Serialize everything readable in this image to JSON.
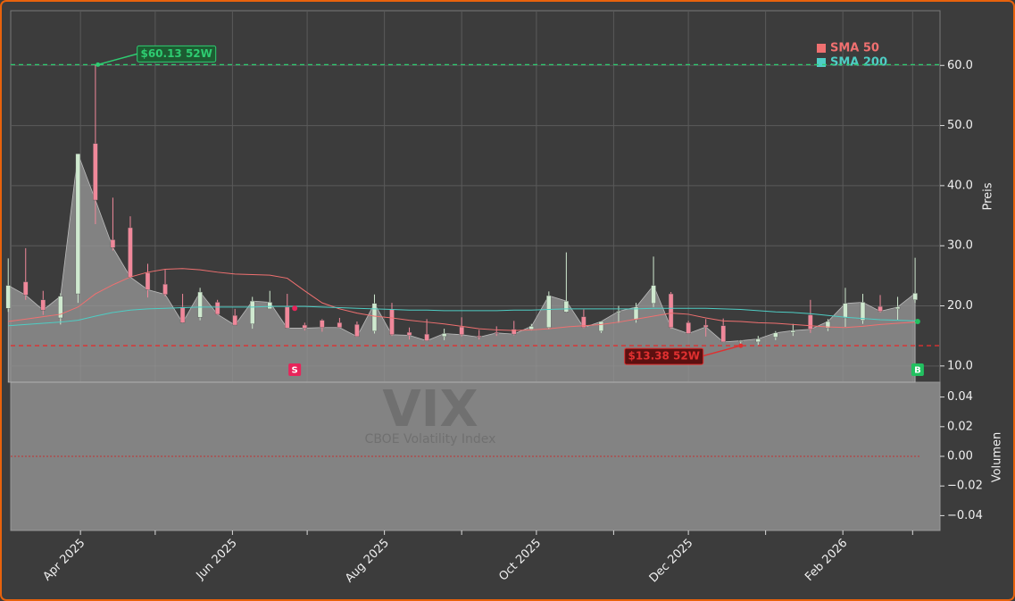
{
  "chart_data": {
    "type": "candlestick",
    "watermark": {
      "symbol": "VIX",
      "name": "CBOE Volatility Index"
    },
    "ylabel": "Preis",
    "y2label": "Volumen",
    "xlim": [
      "2025-03-04",
      "2026-03-12"
    ],
    "ylim": [
      7.3,
      69.1
    ],
    "yticks": [
      {
        "value": 10,
        "label": "10.0"
      },
      {
        "value": 20,
        "label": "20.0"
      },
      {
        "value": 30,
        "label": "30.0"
      },
      {
        "value": 40,
        "label": "40.0"
      },
      {
        "value": 50,
        "label": "50.0"
      },
      {
        "value": 60,
        "label": "60.0"
      }
    ],
    "y2lim": [
      -0.05,
      0.05
    ],
    "y2ticks": [
      {
        "value": 0.04,
        "label": "0.04"
      },
      {
        "value": 0.02,
        "label": "0.02"
      },
      {
        "value": 0,
        "label": "0.00"
      },
      {
        "value": -0.02,
        "label": "−0.02"
      },
      {
        "value": -0.04,
        "label": "−0.04"
      }
    ],
    "xticks": [
      {
        "value": "2025-04-01",
        "label": "Apr 2025"
      },
      {
        "value": "2025-06-01",
        "label": "Jun 2025"
      },
      {
        "value": "2025-08-01",
        "label": "Aug 2025"
      },
      {
        "value": "2025-10-01",
        "label": "Oct 2025"
      },
      {
        "value": "2025-12-01",
        "label": "Dec 2025"
      },
      {
        "value": "2026-02-01",
        "label": "Feb 2026"
      }
    ],
    "x_minor_ticks": [
      "2025-05-01",
      "2025-07-01",
      "2025-09-01",
      "2025-11-01",
      "2026-01-01",
      "2026-03-01"
    ],
    "grid": true,
    "up_color": "#cfe9cf",
    "down_color": "#f0889a",
    "area_color": "#9a9a9a",
    "x": [
      "2025-03-03",
      "2025-03-10",
      "2025-03-17",
      "2025-03-24",
      "2025-03-31",
      "2025-04-07",
      "2025-04-14",
      "2025-04-21",
      "2025-04-28",
      "2025-05-05",
      "2025-05-12",
      "2025-05-19",
      "2025-05-26",
      "2025-06-02",
      "2025-06-09",
      "2025-06-16",
      "2025-06-23",
      "2025-06-30",
      "2025-07-07",
      "2025-07-14",
      "2025-07-21",
      "2025-07-28",
      "2025-08-04",
      "2025-08-11",
      "2025-08-18",
      "2025-08-25",
      "2025-09-01",
      "2025-09-08",
      "2025-09-15",
      "2025-09-22",
      "2025-09-29",
      "2025-10-06",
      "2025-10-13",
      "2025-10-20",
      "2025-10-27",
      "2025-11-03",
      "2025-11-10",
      "2025-11-17",
      "2025-11-24",
      "2025-12-01",
      "2025-12-08",
      "2025-12-15",
      "2025-12-22",
      "2025-12-29",
      "2026-01-05",
      "2026-01-12",
      "2026-01-19",
      "2026-01-26",
      "2026-02-02",
      "2026-02-09",
      "2026-02-16",
      "2026-02-23",
      "2026-03-02"
    ],
    "open": [
      19.6,
      24,
      21,
      18,
      22,
      47,
      31,
      33,
      25.5,
      23.6,
      19.8,
      18.1,
      20.6,
      18.4,
      17,
      19.5,
      19.8,
      16.8,
      17.6,
      17.2,
      16.9,
      15.8,
      19.4,
      15.6,
      15.3,
      14.9,
      16.5,
      15,
      15.6,
      16.1,
      16.1,
      16.4,
      19,
      18.2,
      15.8,
      18.9,
      17.7,
      20.4,
      22,
      17.2,
      16.8,
      16.7,
      14.1,
      14,
      14.8,
      15.6,
      18.5,
      16.3,
      18,
      17.6,
      19.9,
      19.5,
      21
    ],
    "high": [
      27.9,
      29.6,
      22.5,
      22.1,
      45.3,
      60.13,
      38,
      34.9,
      27,
      26,
      22,
      23,
      21,
      19.5,
      21.5,
      22.5,
      22,
      17.2,
      17.8,
      18,
      17.4,
      21.9,
      20.5,
      16.4,
      17.8,
      16.2,
      18.1,
      16,
      16.6,
      17.5,
      17,
      22.4,
      28.9,
      19.4,
      17.4,
      20,
      20.5,
      28.2,
      22.3,
      17.5,
      17.8,
      17.9,
      14.3,
      15,
      15.8,
      17,
      21,
      17.8,
      23,
      22,
      21.8,
      21.5,
      28
    ],
    "low": [
      19,
      21,
      18.5,
      16.9,
      20.5,
      33.6,
      29.2,
      24.8,
      21.4,
      21.6,
      17.2,
      17.6,
      18.5,
      16.8,
      16.2,
      19.5,
      16.3,
      15.9,
      15.7,
      16.4,
      14.9,
      15.4,
      15,
      14.4,
      14.2,
      14.3,
      14.9,
      14.4,
      15,
      15.1,
      15.9,
      16.1,
      18.9,
      16.3,
      15.5,
      17.2,
      17.2,
      19.8,
      16.2,
      15.4,
      14.9,
      14,
      13.38,
      13.5,
      14.3,
      15,
      15.5,
      15.8,
      16.5,
      17,
      18.9,
      17.7,
      20.5
    ],
    "close": [
      23.4,
      21.8,
      19.3,
      21.6,
      45.3,
      37.6,
      29.7,
      24.8,
      22.7,
      21.9,
      17.2,
      22.3,
      18.6,
      16.8,
      20.8,
      20.6,
      16.3,
      16.3,
      16.4,
      16.4,
      14.9,
      20.4,
      15.2,
      15.1,
      14.2,
      15.4,
      15.2,
      14.8,
      15.5,
      15.3,
      16.6,
      21.7,
      20.8,
      16.4,
      17.4,
      19.1,
      19.8,
      23.4,
      16.4,
      15.4,
      16.5,
      14,
      14.2,
      14.5,
      15.5,
      15.9,
      16.1,
      17.4,
      20.4,
      20.6,
      19.1,
      19.8,
      22.1
    ],
    "series": [
      {
        "name": "SMA 50",
        "color": "#f07070",
        "values": [
          17.4,
          17.8,
          18.2,
          18.6,
          19.8,
          22.0,
          23.5,
          24.8,
          25.6,
          26.1,
          26.2,
          26.0,
          25.6,
          25.3,
          25.2,
          25.1,
          24.6,
          22.5,
          20.5,
          19.5,
          18.8,
          18.3,
          18.0,
          17.6,
          17.3,
          17.0,
          16.6,
          16.2,
          16.0,
          15.9,
          16.0,
          16.2,
          16.5,
          16.7,
          16.9,
          17.3,
          17.8,
          18.3,
          18.8,
          18.6,
          18.0,
          17.5,
          17.4,
          17.2,
          17.1,
          16.9,
          16.7,
          16.5,
          16.4,
          16.6,
          16.9,
          17.1,
          17.3
        ]
      },
      {
        "name": "SMA 200",
        "color": "#4ecdc4",
        "values": [
          16.7,
          16.9,
          17.1,
          17.3,
          17.6,
          18.3,
          18.9,
          19.3,
          19.5,
          19.6,
          19.7,
          19.8,
          19.8,
          19.8,
          19.8,
          19.9,
          19.9,
          19.9,
          19.8,
          19.7,
          19.6,
          19.5,
          19.4,
          19.3,
          19.3,
          19.2,
          19.2,
          19.2,
          19.2,
          19.3,
          19.3,
          19.4,
          19.5,
          19.5,
          19.5,
          19.5,
          19.5,
          19.6,
          19.6,
          19.6,
          19.6,
          19.5,
          19.4,
          19.2,
          19.0,
          18.9,
          18.7,
          18.4,
          18.1,
          17.9,
          17.7,
          17.6,
          17.5
        ]
      }
    ],
    "levels": [
      {
        "value": 60.13,
        "label": "$60.13 52W",
        "color": "#2ecc71",
        "x": "2025-04-08"
      },
      {
        "value": 13.38,
        "label": "$13.38 52W",
        "color": "#e03030",
        "x": "2025-12-22"
      }
    ],
    "signals": [
      {
        "x": "2025-06-26",
        "value": 19.6,
        "label": "S",
        "color": "#e8245a"
      },
      {
        "x": "2026-03-03",
        "value": 17.4,
        "label": "B",
        "color": "#22c060"
      }
    ]
  }
}
